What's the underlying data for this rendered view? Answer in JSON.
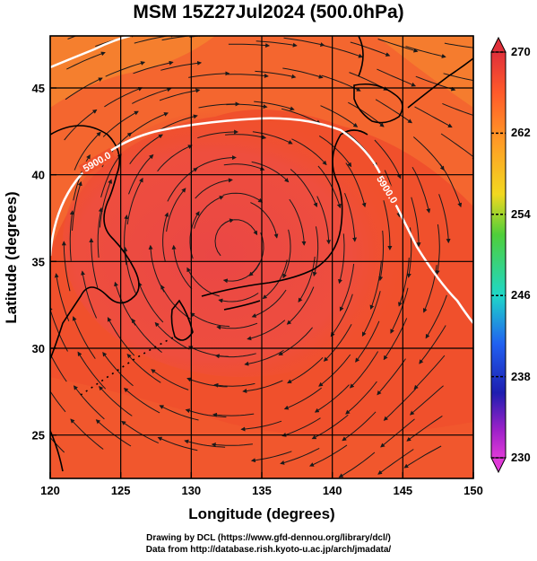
{
  "title": "MSM 15Z27Jul2024 (500.0hPa)",
  "x_axis": {
    "label": "Longitude (degrees)",
    "ticks": [
      "120",
      "125",
      "130",
      "135",
      "140",
      "145",
      "150"
    ]
  },
  "y_axis": {
    "label": "Latitude  (degrees)",
    "ticks": [
      "25",
      "30",
      "35",
      "40",
      "45"
    ]
  },
  "colorbar": {
    "labels": [
      "270",
      "262",
      "254",
      "246",
      "238",
      "230"
    ],
    "colors": [
      "#e0303a",
      "#ff5a2a",
      "#ff9b26",
      "#f2d820",
      "#4fcf3a",
      "#1fd7c8",
      "#2060f0",
      "#1e1eb0",
      "#9b20c8",
      "#e03ad8"
    ]
  },
  "contour": {
    "label": "5900.0",
    "color": "#ffffff"
  },
  "credits": {
    "line1": "Drawing by DCL (https://www.gfd-dennou.org/library/dcl/)",
    "line2": "Data from http://database.rish.kyoto-u.ac.jp/arch/jmadata/"
  },
  "colors": {
    "field_main": "#f0502c",
    "field_warm": "#f46a30",
    "field_high": "#e8433e",
    "field_orange": "#f58a2e",
    "stream": "#1a1a1a",
    "coast": "#000000"
  }
}
